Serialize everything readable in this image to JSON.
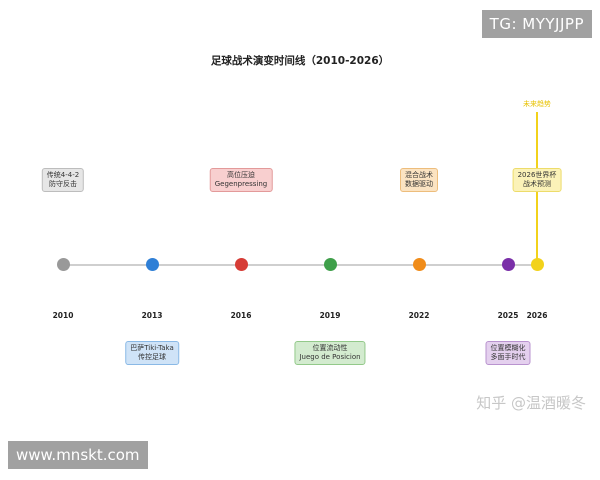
{
  "title": "足球战术演变时间线（2010-2026）",
  "colors": {
    "line": "#cfcfcf",
    "future": "#f2d21b"
  },
  "nodes": [
    {
      "year": "2010",
      "color": "#999999"
    },
    {
      "year": "2013",
      "color": "#2f7fd6"
    },
    {
      "year": "2016",
      "color": "#d63c36"
    },
    {
      "year": "2019",
      "color": "#3f9f4a"
    },
    {
      "year": "2022",
      "color": "#f08c1a"
    },
    {
      "year": "2025",
      "color": "#7a2fa8"
    },
    {
      "year": "2026",
      "color": "#f2d21b"
    }
  ],
  "boxes": {
    "b2010": {
      "line1": "传统4-4-2",
      "line2": "防守反击",
      "bg": "#e6e6e6",
      "border": "#bdbdbd"
    },
    "b2013": {
      "line1": "巴萨Tiki-Taka",
      "line2": "传控足球",
      "bg": "#cfe3f7",
      "border": "#8ab9e6"
    },
    "b2016": {
      "line1": "高位压迫",
      "line2": "Gegenpressing",
      "bg": "#f8cfcf",
      "border": "#e39a9a"
    },
    "b2019": {
      "line1": "位置流动性",
      "line2": "Juego de Posicion",
      "bg": "#d3ebcf",
      "border": "#93c98a"
    },
    "b2022": {
      "line1": "混合战术",
      "line2": "数据驱动",
      "bg": "#fbe3c2",
      "border": "#edbd7c"
    },
    "b2025": {
      "line1": "位置模糊化",
      "line2": "多面手时代",
      "bg": "#e4d0ee",
      "border": "#b993cf"
    },
    "b2026": {
      "line1": "2026世界杯",
      "line2": "战术预测",
      "bg": "#fbf2b8",
      "border": "#eddc6a"
    }
  },
  "future_label": "未来趋势",
  "watermarks": {
    "tg": "TG: MYYJJPP",
    "site": "www.mnskt.com",
    "zhihu": "知乎 @温酒暖冬"
  }
}
